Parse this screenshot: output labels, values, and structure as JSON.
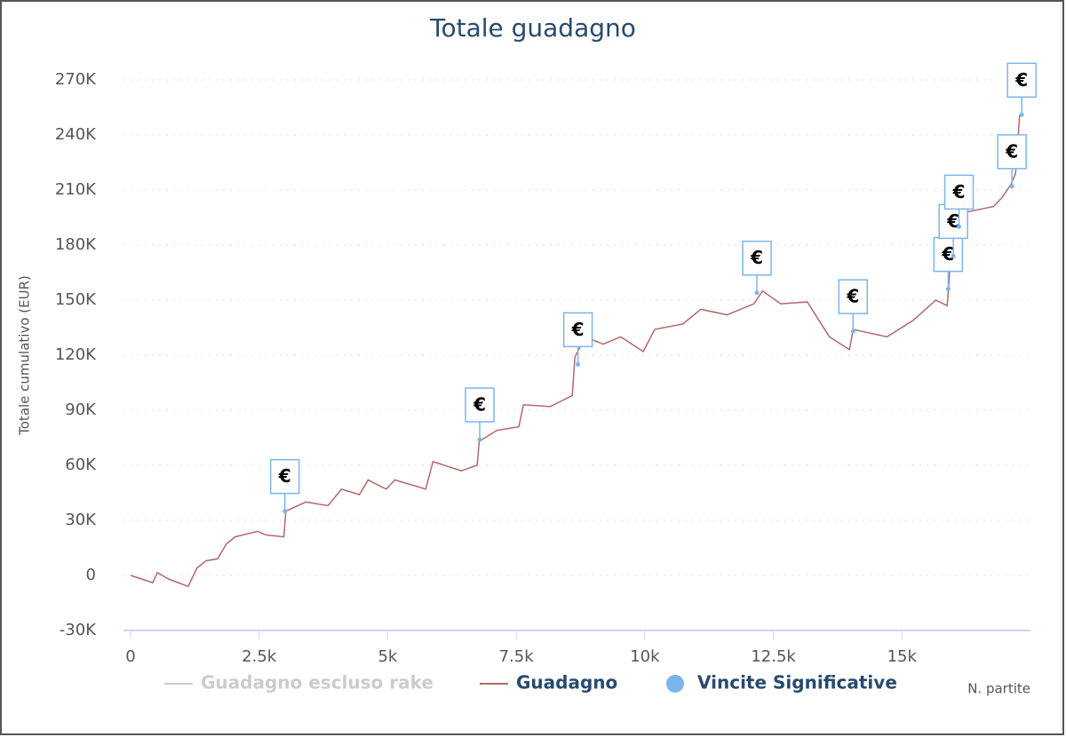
{
  "chart_data": {
    "type": "line",
    "title": "Totale guadagno",
    "y_label": "Totale cumulativo (EUR)",
    "x_label": "N. partite",
    "xlim": [
      0,
      17500
    ],
    "xticks": [
      0,
      {
        "value": 2500,
        "label": "2.5k"
      },
      {
        "value": 5000,
        "label": "5k"
      },
      {
        "value": 7500,
        "label": "7.5k"
      },
      {
        "value": 10000,
        "label": "10k"
      },
      {
        "value": 12500,
        "label": "12.5k"
      },
      {
        "value": 15000,
        "label": "15k"
      }
    ],
    "ylim": [
      -30000,
      270000
    ],
    "yticks": [
      {
        "value": -30000,
        "label": "-30K"
      },
      0,
      {
        "value": 30000,
        "label": "30K"
      },
      {
        "value": 60000,
        "label": "60K"
      },
      {
        "value": 90000,
        "label": "90K"
      },
      {
        "value": 120000,
        "label": "120K"
      },
      {
        "value": 150000,
        "label": "150K"
      },
      {
        "value": 180000,
        "label": "180K"
      },
      {
        "value": 210000,
        "label": "210K"
      },
      {
        "value": 240000,
        "label": "240K"
      },
      {
        "value": 270000,
        "label": "270K"
      }
    ],
    "grid": true,
    "flag_label": "€",
    "series": [
      {
        "name": "Guadagno escluso rake",
        "color": "#cccccc",
        "visible": false
      },
      {
        "name": "Guadagno",
        "color": "#b5686a",
        "x": [
          0,
          220,
          430,
          520,
          740,
          1120,
          1290,
          1470,
          1690,
          1860,
          2030,
          2470,
          2640,
          2980,
          3020,
          3410,
          3840,
          4100,
          4450,
          4620,
          4970,
          5140,
          5740,
          5880,
          6430,
          6740,
          6780,
          7120,
          7550,
          7640,
          8160,
          8590,
          8640,
          8840,
          9190,
          9530,
          9970,
          10190,
          10740,
          11090,
          11600,
          12120,
          12290,
          12640,
          13160,
          13590,
          13980,
          14050,
          14710,
          15220,
          15660,
          15880,
          15950,
          16050,
          16260,
          16780,
          16950,
          17120,
          17210,
          17290
        ],
        "values": [
          0,
          -2000,
          -4000,
          1500,
          -2000,
          -6000,
          4000,
          8000,
          9000,
          17000,
          21000,
          24000,
          22000,
          21000,
          35000,
          40000,
          38000,
          47000,
          44000,
          52000,
          47000,
          52000,
          47000,
          62000,
          57000,
          60000,
          73000,
          79000,
          81000,
          93000,
          92000,
          98000,
          119000,
          130000,
          126000,
          130000,
          122000,
          134000,
          137000,
          145000,
          142000,
          148000,
          155000,
          148000,
          149000,
          130000,
          123000,
          134000,
          130000,
          139000,
          150000,
          147000,
          173000,
          188000,
          198000,
          201000,
          206000,
          213000,
          219000,
          251000
        ]
      },
      {
        "name": "Vincite Significative",
        "color": "#7cb5ec",
        "x": [
          3000,
          6790,
          8700,
          12180,
          14050,
          15900,
          16000,
          16110,
          17140,
          17330
        ],
        "values": [
          35000,
          74000,
          115000,
          154000,
          133000,
          156000,
          174000,
          190000,
          212000,
          251000
        ]
      }
    ]
  }
}
